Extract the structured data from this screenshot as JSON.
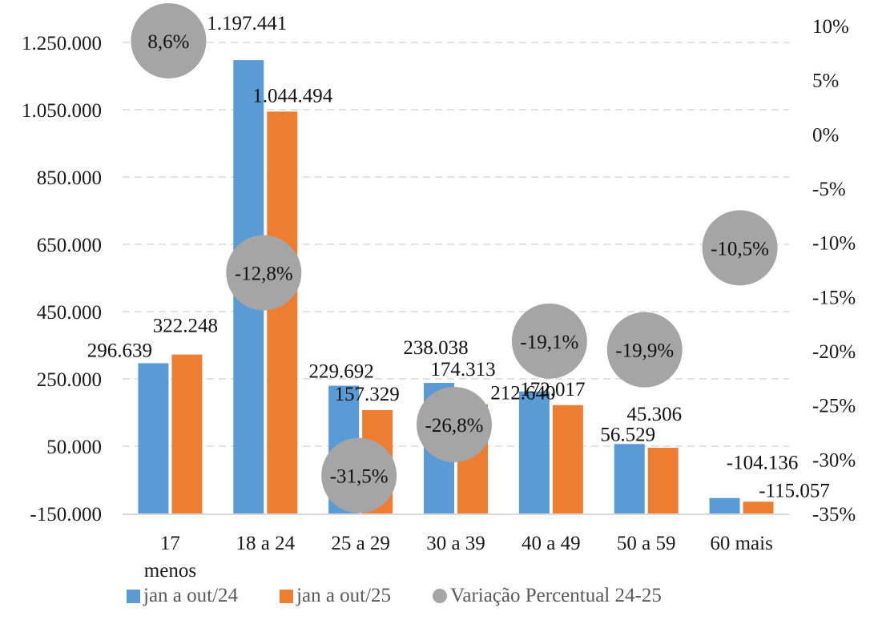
{
  "chart_data": {
    "type": "bar",
    "title": "",
    "xlabel": "",
    "ylabel": "",
    "categories": [
      "17 menos",
      "18 a 24",
      "25 a 29",
      "30 a 39",
      "40 a 49",
      "50 a 59",
      "60 mais"
    ],
    "category_lines": [
      [
        "17",
        "menos"
      ],
      [
        "18 a 24"
      ],
      [
        "25 a 29"
      ],
      [
        "30 a 39"
      ],
      [
        "40 a 49"
      ],
      [
        "50 a 59"
      ],
      [
        "60 mais"
      ]
    ],
    "series": [
      {
        "name": "jan a out/24",
        "color": "#5B9BD5",
        "axis": "left",
        "values": [
          296639,
          1197441,
          229692,
          238038,
          212640,
          56529,
          -104136
        ],
        "labels": [
          "296.639",
          "1.197.441",
          "229.692",
          "238.038",
          "212.640",
          "56.529",
          "-104.136"
        ]
      },
      {
        "name": "jan a out/25",
        "color": "#ED7D31",
        "axis": "left",
        "values": [
          322248,
          1044494,
          157329,
          174313,
          172017,
          45306,
          -115057
        ],
        "labels": [
          "322.248",
          "1.044.494",
          "157.329",
          "174.313",
          "172.017",
          "45.306",
          "-115.057"
        ]
      },
      {
        "name": "Variação Percentual 24-25",
        "color": "#A5A5A5",
        "axis": "right",
        "type": "scatter",
        "values": [
          8.6,
          -12.8,
          -31.5,
          -26.8,
          -19.1,
          -19.9,
          -10.5
        ],
        "labels": [
          "8,6%",
          "-12,8%",
          "-31,5%",
          "-26,8%",
          "-19,1%",
          "-19,9%",
          "-10,5%"
        ]
      }
    ],
    "y_left": {
      "ylim": [
        -150000,
        1250000
      ],
      "ticks": [
        1250000,
        1050000,
        850000,
        650000,
        450000,
        250000,
        50000,
        -150000
      ],
      "tick_labels": [
        "1.250.000",
        "1.050.000",
        "850.000",
        "650.000",
        "450.000",
        "250.000",
        "50.000",
        "-150.000"
      ]
    },
    "y_right": {
      "ylim": [
        -35,
        10
      ],
      "ticks": [
        10,
        5,
        0,
        -5,
        -10,
        -15,
        -20,
        -25,
        -30,
        -35
      ],
      "tick_labels": [
        "10%",
        "5%",
        "0%",
        "-5%",
        "-10%",
        "-15%",
        "-20%",
        "-25%",
        "-30%",
        "-35%"
      ]
    },
    "grid": true,
    "legend": "bottom-left"
  },
  "legend": {
    "items": [
      {
        "label": "jan a out/24",
        "color": "#5B9BD5",
        "shape": "square"
      },
      {
        "label": "jan a out/25",
        "color": "#ED7D31",
        "shape": "square"
      },
      {
        "label": "Variação Percentual 24-25",
        "color": "#A5A5A5",
        "shape": "circle"
      }
    ]
  }
}
